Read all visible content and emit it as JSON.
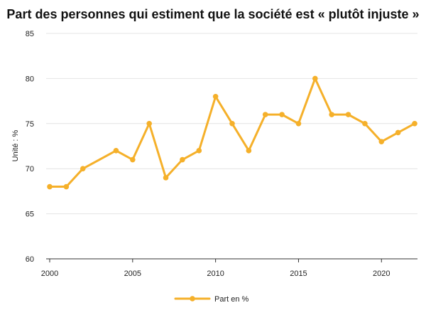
{
  "chart_data": {
    "type": "line",
    "title": "Part des personnes qui estiment que la société est « plutôt injuste »",
    "xlabel": "",
    "ylabel": "Unité : %",
    "xlim": [
      2000,
      2022
    ],
    "ylim": [
      60,
      85
    ],
    "x_ticks": [
      2000,
      2005,
      2010,
      2015,
      2020
    ],
    "y_ticks": [
      60,
      65,
      70,
      75,
      80,
      85
    ],
    "grid": "horizontal",
    "legend_position": "bottom",
    "series": [
      {
        "name": "Part en %",
        "color": "#F5B02A",
        "x": [
          2000,
          2001,
          2002,
          2004,
          2005,
          2006,
          2007,
          2008,
          2009,
          2010,
          2011,
          2012,
          2013,
          2014,
          2015,
          2016,
          2017,
          2018,
          2019,
          2020,
          2021,
          2022
        ],
        "y": [
          68,
          68,
          70,
          72,
          71,
          75,
          69,
          71,
          72,
          78,
          75,
          72,
          76,
          76,
          75,
          80,
          76,
          76,
          75,
          73,
          74,
          75
        ]
      }
    ]
  }
}
